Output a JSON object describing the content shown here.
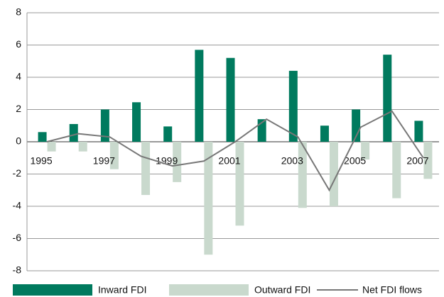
{
  "chart_data": {
    "type": "bar-line",
    "categories": [
      "1995",
      null,
      "1997",
      null,
      "1999",
      null,
      "2001",
      null,
      "2003",
      null,
      "2005",
      null,
      "2007"
    ],
    "series": [
      {
        "name": "Inward FDI",
        "type": "bar",
        "color": "#007a5e",
        "values": [
          0.6,
          1.1,
          2.0,
          2.45,
          0.95,
          5.7,
          5.2,
          1.4,
          4.4,
          1.0,
          2.0,
          5.4,
          1.3
        ]
      },
      {
        "name": "Outward FDI",
        "type": "bar",
        "color": "#c9d9cd",
        "values": [
          -0.6,
          -0.6,
          -1.7,
          -3.3,
          -2.5,
          -7.0,
          -5.2,
          0,
          -4.1,
          -4.0,
          -1.1,
          -3.5,
          -2.3
        ]
      },
      {
        "name": "Net FDI flows",
        "type": "line",
        "color": "#777777",
        "values": [
          0,
          0.5,
          0.3,
          -0.9,
          -1.5,
          -1.2,
          0,
          1.4,
          0.3,
          -3.0,
          0.9,
          1.9,
          -1.0
        ]
      }
    ],
    "ylim": [
      -8,
      8
    ],
    "yticks": [
      -8,
      -6,
      -4,
      -2,
      0,
      2,
      4,
      6,
      8
    ],
    "grid": true
  }
}
